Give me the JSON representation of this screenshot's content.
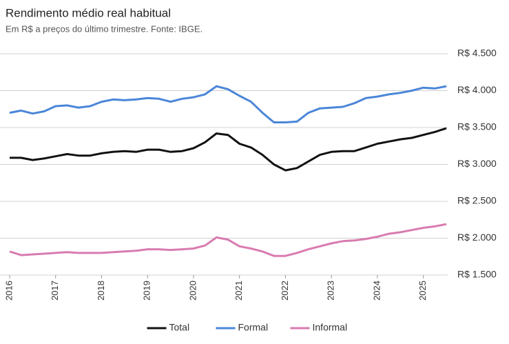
{
  "chart_data": {
    "type": "line",
    "title": "Rendimento médio real habitual",
    "subtitle": "Em R$ a preços do último trimestre. Fonte: IBGE.",
    "x": [
      2016,
      2016.25,
      2016.5,
      2016.75,
      2017,
      2017.25,
      2017.5,
      2017.75,
      2018,
      2018.25,
      2018.5,
      2018.75,
      2019,
      2019.25,
      2019.5,
      2019.75,
      2020,
      2020.25,
      2020.5,
      2020.75,
      2021,
      2021.25,
      2021.5,
      2021.75,
      2022,
      2022.25,
      2022.5,
      2022.75,
      2023,
      2023.25,
      2023.5,
      2023.75,
      2024,
      2024.25,
      2024.5,
      2024.75,
      2025,
      2025.25,
      2025.5
    ],
    "series": [
      {
        "name": "Total",
        "color": "#111111",
        "values": [
          3090,
          3090,
          3060,
          3080,
          3110,
          3140,
          3120,
          3120,
          3150,
          3170,
          3180,
          3170,
          3200,
          3200,
          3170,
          3180,
          3220,
          3300,
          3420,
          3400,
          3280,
          3230,
          3130,
          3000,
          2920,
          2950,
          3040,
          3130,
          3170,
          3180,
          3180,
          3230,
          3280,
          3310,
          3340,
          3360,
          3400,
          3440,
          3490
        ]
      },
      {
        "name": "Formal",
        "color": "#4a86d8",
        "values": [
          3700,
          3730,
          3690,
          3720,
          3790,
          3800,
          3770,
          3790,
          3850,
          3880,
          3870,
          3880,
          3900,
          3890,
          3850,
          3890,
          3910,
          3950,
          4060,
          4020,
          3930,
          3850,
          3700,
          3570,
          3570,
          3580,
          3700,
          3760,
          3770,
          3780,
          3830,
          3900,
          3920,
          3950,
          3970,
          4000,
          4040,
          4030,
          4060
        ]
      },
      {
        "name": "Informal",
        "color": "#d97bb0",
        "values": [
          1820,
          1770,
          1780,
          1790,
          1800,
          1810,
          1800,
          1800,
          1800,
          1810,
          1820,
          1830,
          1850,
          1850,
          1840,
          1850,
          1860,
          1900,
          2010,
          1980,
          1890,
          1860,
          1820,
          1760,
          1760,
          1800,
          1850,
          1890,
          1930,
          1960,
          1970,
          1990,
          2020,
          2060,
          2080,
          2110,
          2140,
          2160,
          2190
        ]
      }
    ],
    "xlim": [
      2016,
      2025.5
    ],
    "xticks": [
      2016,
      2017,
      2018,
      2019,
      2020,
      2021,
      2022,
      2023,
      2024,
      2025
    ],
    "ylim": [
      1500,
      4500
    ],
    "yticks": [
      {
        "value": 1500,
        "label": "R$ 1.500"
      },
      {
        "value": 2000,
        "label": "R$ 2.000"
      },
      {
        "value": 2500,
        "label": "R$ 2.500"
      },
      {
        "value": 3000,
        "label": "R$ 3.000"
      },
      {
        "value": 3500,
        "label": "R$ 3.500"
      },
      {
        "value": 4000,
        "label": "R$ 4.000"
      },
      {
        "value": 4500,
        "label": "R$ 4.500"
      }
    ],
    "grid": true,
    "legend": "bottom"
  }
}
